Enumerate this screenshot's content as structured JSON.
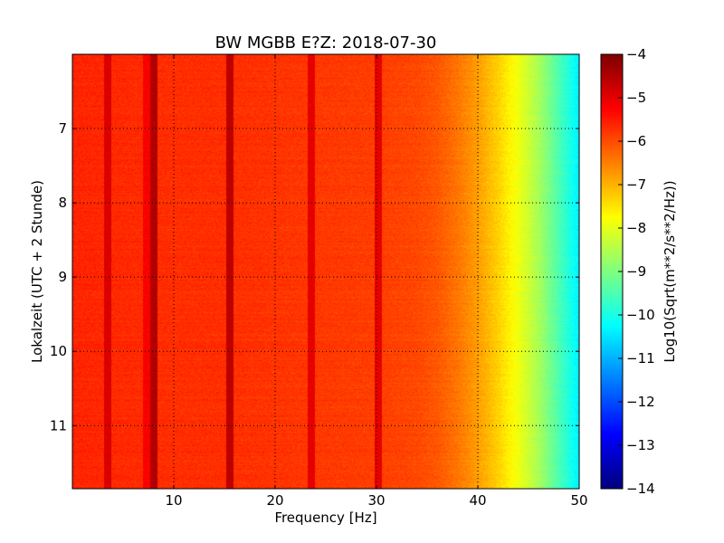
{
  "chart_data": {
    "type": "heatmap",
    "title": "BW MGBB E?Z: 2018-07-30",
    "xlabel": "Frequency [Hz]",
    "ylabel": "Lokalzeit (UTC + 2 Stunde)",
    "colorbar_label": "Log10(Sqrt(m**2/s**2/Hz))",
    "xlim": [
      0,
      50
    ],
    "ylim": [
      11.85,
      6.0
    ],
    "y_inverted": true,
    "clim": [
      -14,
      -4
    ],
    "colormap": "jet",
    "grid": true,
    "xticks": [
      10,
      20,
      30,
      40,
      50
    ],
    "yticks": [
      7,
      8,
      9,
      10,
      11
    ],
    "cticks": [
      -4,
      -5,
      -6,
      -7,
      -8,
      -9,
      -10,
      -11,
      -12,
      -13,
      -14
    ],
    "background_profile": {
      "frequency": [
        0,
        5,
        10,
        15,
        20,
        25,
        30,
        34,
        36,
        38,
        40,
        42,
        44,
        46,
        48,
        50
      ],
      "value": [
        -5.6,
        -5.65,
        -5.7,
        -5.7,
        -5.75,
        -5.8,
        -5.85,
        -5.95,
        -6.1,
        -6.4,
        -6.8,
        -7.3,
        -7.9,
        -8.6,
        -9.5,
        -10.4
      ]
    },
    "spectral_lines": [
      {
        "frequency": 3.5,
        "value": -4.9
      },
      {
        "frequency": 7.3,
        "value": -5.2
      },
      {
        "frequency": 8.0,
        "value": -4.5
      },
      {
        "frequency": 15.5,
        "value": -4.6
      },
      {
        "frequency": 23.6,
        "value": -5.0
      },
      {
        "frequency": 30.2,
        "value": -5.0
      }
    ]
  }
}
